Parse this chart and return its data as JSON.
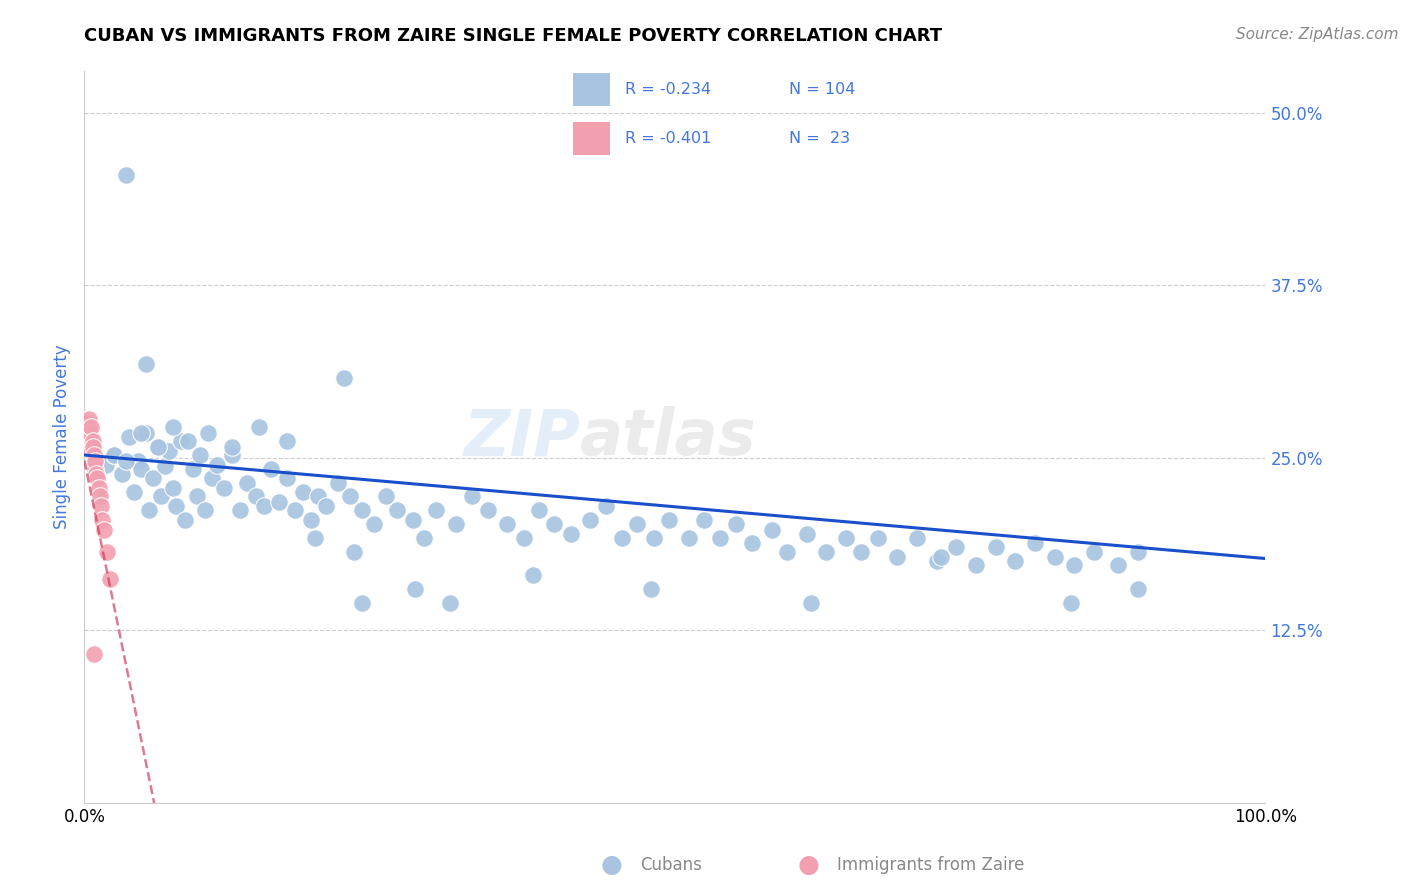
{
  "title": "CUBAN VS IMMIGRANTS FROM ZAIRE SINGLE FEMALE POVERTY CORRELATION CHART",
  "source": "Source: ZipAtlas.com",
  "ylabel": "Single Female Poverty",
  "ylim": [
    0.0,
    0.53
  ],
  "xlim": [
    0.0,
    1.0
  ],
  "legend_R_blue": "-0.234",
  "legend_N_blue": "104",
  "legend_R_pink": "-0.401",
  "legend_N_pink": "23",
  "blue_color": "#a8c4e0",
  "pink_color": "#f2a0b0",
  "blue_line_color": "#1a4fcc",
  "pink_line_color": "#cc3355",
  "title_color": "#000000",
  "ytick_color": "#4477dd",
  "label_color": "#888888",
  "blue_slope": -0.075,
  "blue_intercept": 0.252,
  "pink_slope": -4.2,
  "pink_intercept": 0.248,
  "cubans_x": [
    0.018,
    0.025,
    0.032,
    0.038,
    0.042,
    0.045,
    0.048,
    0.052,
    0.055,
    0.058,
    0.062,
    0.065,
    0.068,
    0.072,
    0.075,
    0.078,
    0.082,
    0.085,
    0.092,
    0.095,
    0.098,
    0.102,
    0.108,
    0.112,
    0.118,
    0.125,
    0.132,
    0.138,
    0.145,
    0.152,
    0.158,
    0.165,
    0.172,
    0.178,
    0.185,
    0.192,
    0.198,
    0.205,
    0.215,
    0.225,
    0.235,
    0.245,
    0.255,
    0.265,
    0.278,
    0.288,
    0.298,
    0.315,
    0.328,
    0.342,
    0.358,
    0.372,
    0.385,
    0.398,
    0.412,
    0.428,
    0.442,
    0.455,
    0.468,
    0.482,
    0.495,
    0.512,
    0.525,
    0.538,
    0.552,
    0.565,
    0.582,
    0.595,
    0.612,
    0.628,
    0.645,
    0.658,
    0.672,
    0.688,
    0.705,
    0.722,
    0.738,
    0.755,
    0.772,
    0.788,
    0.805,
    0.822,
    0.838,
    0.855,
    0.875,
    0.892,
    0.025,
    0.035,
    0.048,
    0.062,
    0.075,
    0.088,
    0.105,
    0.125,
    0.148,
    0.172,
    0.195,
    0.228,
    0.035,
    0.052,
    0.22,
    0.28,
    0.38,
    0.48,
    0.31,
    0.615,
    0.725,
    0.835,
    0.892,
    0.235
  ],
  "cubans_y": [
    0.245,
    0.252,
    0.238,
    0.265,
    0.225,
    0.248,
    0.242,
    0.268,
    0.212,
    0.235,
    0.258,
    0.222,
    0.244,
    0.255,
    0.228,
    0.215,
    0.262,
    0.205,
    0.242,
    0.222,
    0.252,
    0.212,
    0.235,
    0.245,
    0.228,
    0.252,
    0.212,
    0.232,
    0.222,
    0.215,
    0.242,
    0.218,
    0.235,
    0.212,
    0.225,
    0.205,
    0.222,
    0.215,
    0.232,
    0.222,
    0.212,
    0.202,
    0.222,
    0.212,
    0.205,
    0.192,
    0.212,
    0.202,
    0.222,
    0.212,
    0.202,
    0.192,
    0.212,
    0.202,
    0.195,
    0.205,
    0.215,
    0.192,
    0.202,
    0.192,
    0.205,
    0.192,
    0.205,
    0.192,
    0.202,
    0.188,
    0.198,
    0.182,
    0.195,
    0.182,
    0.192,
    0.182,
    0.192,
    0.178,
    0.192,
    0.175,
    0.185,
    0.172,
    0.185,
    0.175,
    0.188,
    0.178,
    0.172,
    0.182,
    0.172,
    0.182,
    0.252,
    0.248,
    0.268,
    0.258,
    0.272,
    0.262,
    0.268,
    0.258,
    0.272,
    0.262,
    0.192,
    0.182,
    0.455,
    0.318,
    0.308,
    0.155,
    0.165,
    0.155,
    0.145,
    0.145,
    0.178,
    0.145,
    0.155,
    0.145
  ],
  "zaire_x": [
    0.002,
    0.003,
    0.004,
    0.004,
    0.005,
    0.006,
    0.006,
    0.007,
    0.007,
    0.008,
    0.008,
    0.009,
    0.009,
    0.01,
    0.011,
    0.012,
    0.013,
    0.014,
    0.015,
    0.017,
    0.019,
    0.022,
    0.008
  ],
  "zaire_y": [
    0.275,
    0.272,
    0.278,
    0.265,
    0.268,
    0.255,
    0.272,
    0.262,
    0.258,
    0.252,
    0.245,
    0.242,
    0.248,
    0.238,
    0.235,
    0.228,
    0.222,
    0.215,
    0.205,
    0.198,
    0.182,
    0.162,
    0.108
  ]
}
